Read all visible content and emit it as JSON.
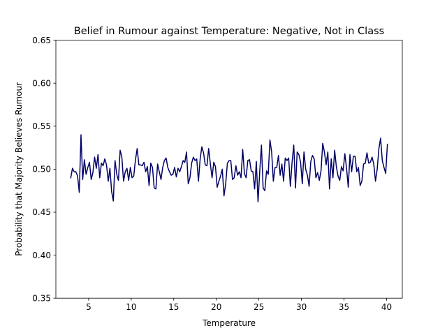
{
  "chart_data": {
    "type": "line",
    "title": "Belief in Rumour against Temperature: Negative, Not in Class",
    "xlabel": "Temperature",
    "ylabel": "Probability that Majority Believes Rumour",
    "xlim": [
      1.15,
      41.85
    ],
    "ylim": [
      0.35,
      0.65
    ],
    "xticks": [
      5,
      10,
      15,
      20,
      25,
      30,
      35,
      40
    ],
    "xtick_labels": [
      "5",
      "10",
      "15",
      "20",
      "25",
      "30",
      "35",
      "40"
    ],
    "yticks": [
      0.35,
      0.4,
      0.45,
      0.5,
      0.55,
      0.6,
      0.65
    ],
    "ytick_labels": [
      "0.35",
      "0.40",
      "0.45",
      "0.50",
      "0.55",
      "0.60",
      "0.65"
    ],
    "grid": false,
    "legend": "none",
    "series": [
      {
        "color": "#000066",
        "x_start": 2.9,
        "x_end": 40.1,
        "values": [
          0.49,
          0.501,
          0.497,
          0.497,
          0.492,
          0.473,
          0.54,
          0.488,
          0.511,
          0.494,
          0.502,
          0.508,
          0.488,
          0.496,
          0.514,
          0.501,
          0.517,
          0.49,
          0.507,
          0.504,
          0.512,
          0.505,
          0.486,
          0.501,
          0.474,
          0.463,
          0.51,
          0.494,
          0.487,
          0.522,
          0.514,
          0.486,
          0.497,
          0.501,
          0.487,
          0.502,
          0.49,
          0.492,
          0.511,
          0.524,
          0.505,
          0.505,
          0.504,
          0.508,
          0.497,
          0.503,
          0.481,
          0.507,
          0.502,
          0.478,
          0.477,
          0.506,
          0.497,
          0.488,
          0.502,
          0.51,
          0.513,
          0.502,
          0.497,
          0.493,
          0.494,
          0.502,
          0.491,
          0.501,
          0.497,
          0.503,
          0.51,
          0.508,
          0.52,
          0.483,
          0.49,
          0.507,
          0.514,
          0.51,
          0.512,
          0.486,
          0.512,
          0.526,
          0.519,
          0.505,
          0.504,
          0.524,
          0.506,
          0.49,
          0.508,
          0.503,
          0.479,
          0.486,
          0.492,
          0.5,
          0.469,
          0.483,
          0.507,
          0.51,
          0.51,
          0.488,
          0.49,
          0.504,
          0.493,
          0.497,
          0.49,
          0.523,
          0.495,
          0.49,
          0.51,
          0.511,
          0.498,
          0.497,
          0.477,
          0.509,
          0.462,
          0.497,
          0.528,
          0.478,
          0.475,
          0.498,
          0.494,
          0.534,
          0.52,
          0.486,
          0.502,
          0.502,
          0.516,
          0.493,
          0.506,
          0.486,
          0.513,
          0.51,
          0.513,
          0.48,
          0.508,
          0.528,
          0.478,
          0.52,
          0.517,
          0.508,
          0.483,
          0.52,
          0.5,
          0.493,
          0.48,
          0.509,
          0.516,
          0.512,
          0.49,
          0.496,
          0.487,
          0.498,
          0.53,
          0.52,
          0.505,
          0.52,
          0.477,
          0.512,
          0.49,
          0.522,
          0.503,
          0.492,
          0.487,
          0.503,
          0.498,
          0.518,
          0.501,
          0.479,
          0.517,
          0.497,
          0.515,
          0.515,
          0.497,
          0.502,
          0.481,
          0.486,
          0.506,
          0.507,
          0.519,
          0.507,
          0.508,
          0.514,
          0.506,
          0.486,
          0.5,
          0.524,
          0.536,
          0.51,
          0.502,
          0.495,
          0.529
        ]
      }
    ]
  }
}
